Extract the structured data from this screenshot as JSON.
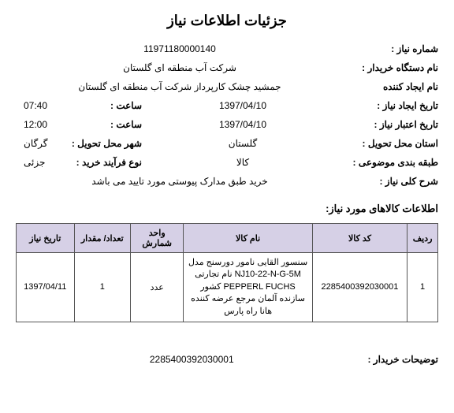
{
  "title": "جزئیات اطلاعات نیاز",
  "fields": {
    "need_no_label": "شماره نیاز :",
    "need_no": "11971180000140",
    "buyer_label": "نام دستگاه خریدار :",
    "buyer": "شرکت آب منطقه ای گلستان",
    "creator_label": "نام ایجاد کننده",
    "creator": "جمشید چشک کارپرداز شرکت آب منطقه ای گلستان",
    "create_date_label": "تاریخ ایجاد نیاز :",
    "create_date": "1397/04/10",
    "create_time_label": "ساعت :",
    "create_time": "07:40",
    "valid_date_label": "تاریخ اعتبار نیاز :",
    "valid_date": "1397/04/10",
    "valid_time_label": "ساعت :",
    "valid_time": "12:00",
    "province_label": "استان محل تحویل :",
    "province": "گلستان",
    "city_label": "شهر محل تحویل :",
    "city": "گرگان",
    "category_label": "طبقه بندی موضوعی :",
    "category": "کالا",
    "process_label": "نوع فرآیند خرید :",
    "process": "جزئی",
    "desc_label": "شرح کلی نیاز :",
    "desc": "خرید طبق مدارک پیوستی مورد تایید می باشد"
  },
  "items_section_title": "اطلاعات کالاهای مورد نیاز:",
  "table": {
    "headers": {
      "row": "ردیف",
      "code": "کد کالا",
      "name": "نام کالا",
      "unit": "واحد شمارش",
      "qty": "تعداد/ مقدار",
      "need_date": "تاریخ نیاز"
    },
    "cols_width": {
      "row": "38px",
      "code": "118px",
      "name": "160px",
      "unit": "66px",
      "qty": "70px",
      "need_date": "72px"
    },
    "header_bg": "#d6d0e6",
    "rows": [
      {
        "row": "1",
        "code": "2285400392030001",
        "name": "سنسور القایی نامور دورسنج مدل NJ10-22-N-G-5M نام تجارتی PEPPERL FUCHS کشور سازنده آلمان مرجع عرضه کننده هانا راه پارس",
        "unit": "عدد",
        "qty": "1",
        "need_date": "1397/04/11"
      }
    ]
  },
  "footer": {
    "label": "توضیحات خریدار :",
    "value": "2285400392030001"
  }
}
